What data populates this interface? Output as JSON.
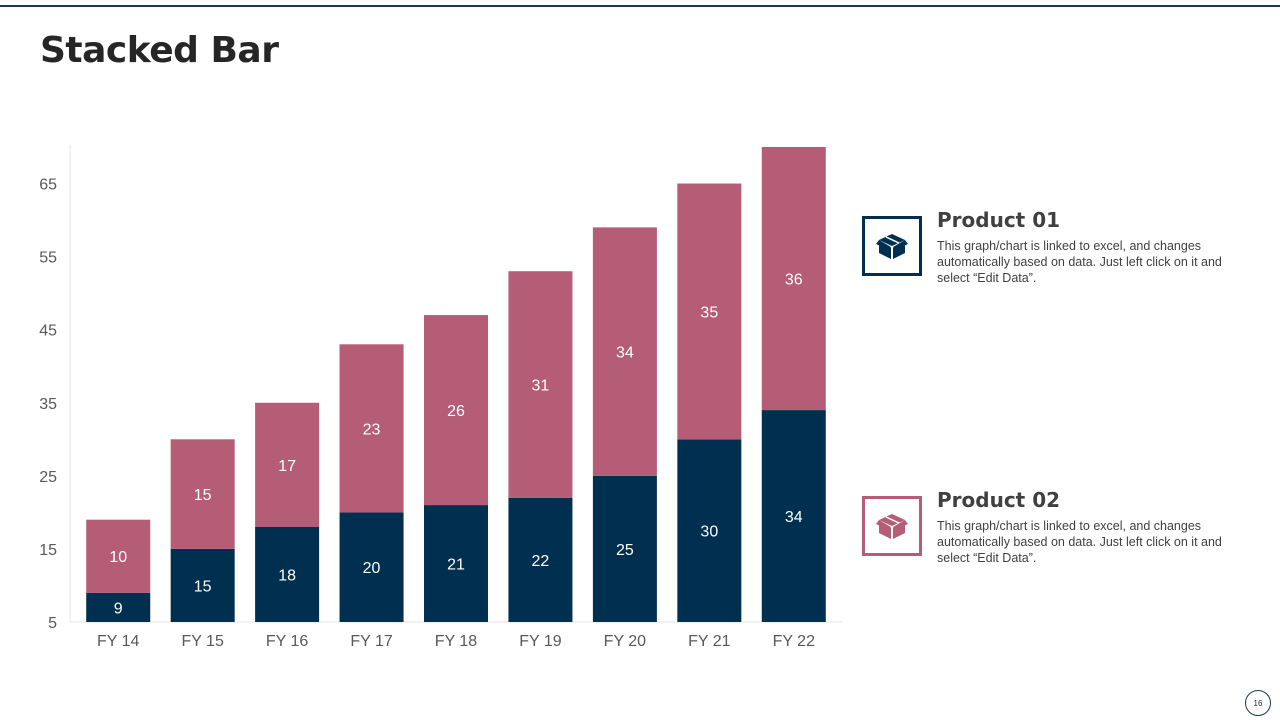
{
  "title": "Stacked Bar",
  "colors": {
    "series1": "#002f4f",
    "series2": "#b55c77",
    "accent": "#1b3a55"
  },
  "legend": [
    {
      "title": "Product 01",
      "description": "This graph/chart is linked to excel, and changes automatically based on data. Just left click on it and select “Edit Data”.",
      "icon": "box-icon"
    },
    {
      "title": "Product 02",
      "description": "This graph/chart is linked to excel, and changes automatically based on data. Just left click on it and select “Edit Data”.",
      "icon": "box-icon"
    }
  ],
  "page_number": "16",
  "chart_data": {
    "type": "bar",
    "stacked": true,
    "categories": [
      "FY 14",
      "FY 15",
      "FY 16",
      "FY 17",
      "FY 18",
      "FY 19",
      "FY 20",
      "FY 21",
      "FY 22"
    ],
    "series": [
      {
        "name": "Product 01",
        "values": [
          9,
          15,
          18,
          20,
          21,
          22,
          25,
          30,
          34
        ]
      },
      {
        "name": "Product 02",
        "values": [
          10,
          15,
          17,
          23,
          26,
          31,
          34,
          35,
          36
        ]
      }
    ],
    "ylim": [
      5,
      70
    ],
    "yticks": [
      5,
      15,
      25,
      35,
      45,
      55,
      65
    ],
    "title": "",
    "xlabel": "",
    "ylabel": "",
    "grid": false
  }
}
